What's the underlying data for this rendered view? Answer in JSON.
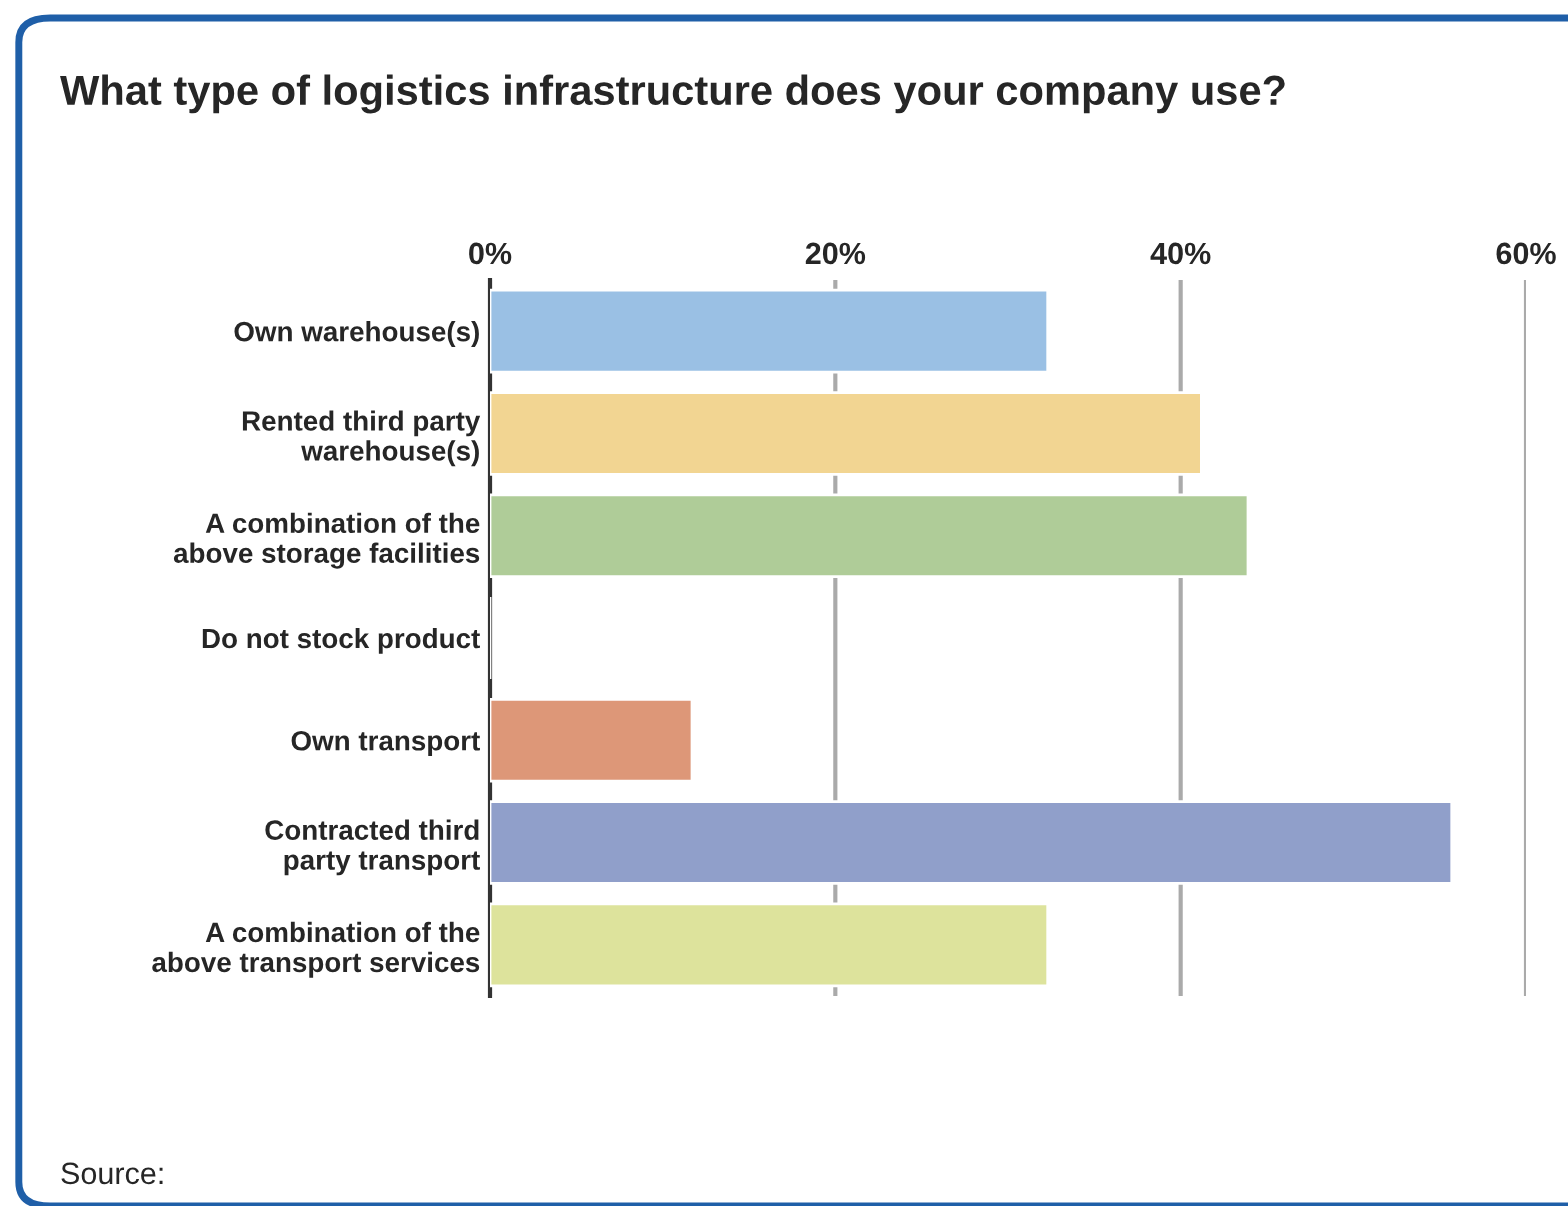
{
  "chart_data": {
    "type": "bar",
    "orientation": "horizontal",
    "title": "What type of logistics infrastructure does your company use?",
    "categories": [
      "Own warehouse(s)",
      "Rented third party\nwarehouse(s)",
      "A combination of the\nabove storage facilities",
      "Do not stock product",
      "Own transport",
      "Contracted third\nparty transport",
      "A combination of the\nabove transport services"
    ],
    "values": [
      32.3,
      41.2,
      43.9,
      0,
      11.7,
      55.7,
      32.3
    ],
    "colors": [
      "#9ac0e4",
      "#f2d592",
      "#afcc98",
      null,
      "#dd9778",
      "#909fca",
      "#dde39c"
    ],
    "xlim": [
      0,
      60
    ],
    "xticks": [
      {
        "value": 0,
        "label": "0%"
      },
      {
        "value": 20,
        "label": "20%"
      },
      {
        "value": 40,
        "label": "40%"
      },
      {
        "value": 60,
        "label": "60%"
      }
    ],
    "grid": "x",
    "annotations": [
      "Source:"
    ]
  }
}
